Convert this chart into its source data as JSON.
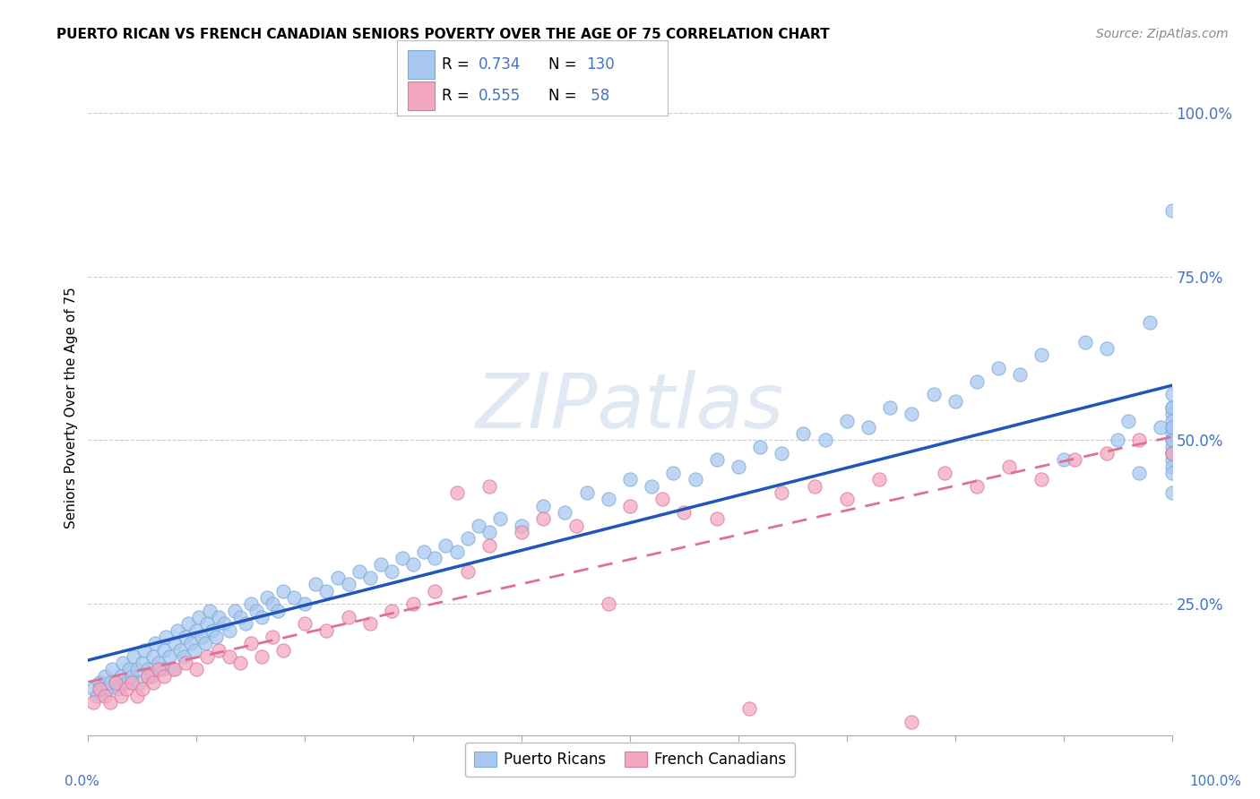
{
  "title": "PUERTO RICAN VS FRENCH CANADIAN SENIORS POVERTY OVER THE AGE OF 75 CORRELATION CHART",
  "source": "Source: ZipAtlas.com",
  "ylabel": "Seniors Poverty Over the Age of 75",
  "legend_pr": {
    "R": 0.734,
    "N": 130
  },
  "legend_fc": {
    "R": 0.555,
    "N": 58
  },
  "pr_color": "#a8c8f0",
  "pr_edge_color": "#7aaad8",
  "fc_color": "#f4a8c0",
  "fc_edge_color": "#d878a0",
  "pr_line_color": "#2255bb",
  "fc_line_color": "#e07090",
  "background_color": "#ffffff",
  "grid_color": "#cccccc",
  "ytick_color": "#4472c4",
  "watermark_color": "#e0e8f4",
  "xlim": [
    0.0,
    1.0
  ],
  "ylim": [
    0.05,
    1.05
  ],
  "pr_x": [
    0.005,
    0.008,
    0.01,
    0.012,
    0.015,
    0.018,
    0.02,
    0.022,
    0.025,
    0.028,
    0.03,
    0.032,
    0.035,
    0.038,
    0.04,
    0.042,
    0.045,
    0.048,
    0.05,
    0.052,
    0.055,
    0.058,
    0.06,
    0.062,
    0.065,
    0.068,
    0.07,
    0.072,
    0.075,
    0.078,
    0.08,
    0.082,
    0.085,
    0.088,
    0.09,
    0.092,
    0.095,
    0.098,
    0.1,
    0.102,
    0.105,
    0.108,
    0.11,
    0.112,
    0.115,
    0.118,
    0.12,
    0.125,
    0.13,
    0.135,
    0.14,
    0.145,
    0.15,
    0.155,
    0.16,
    0.165,
    0.17,
    0.175,
    0.18,
    0.19,
    0.2,
    0.21,
    0.22,
    0.23,
    0.24,
    0.25,
    0.26,
    0.27,
    0.28,
    0.29,
    0.3,
    0.31,
    0.32,
    0.33,
    0.34,
    0.35,
    0.36,
    0.37,
    0.38,
    0.4,
    0.42,
    0.44,
    0.46,
    0.48,
    0.5,
    0.52,
    0.54,
    0.56,
    0.58,
    0.6,
    0.62,
    0.64,
    0.66,
    0.68,
    0.7,
    0.72,
    0.74,
    0.76,
    0.78,
    0.8,
    0.82,
    0.84,
    0.86,
    0.88,
    0.9,
    0.92,
    0.94,
    0.95,
    0.96,
    0.97,
    0.98,
    0.99,
    1.0,
    1.0,
    1.0,
    1.0,
    1.0,
    1.0,
    1.0,
    1.0,
    1.0,
    1.0,
    1.0,
    1.0,
    1.0,
    1.0,
    1.0,
    1.0,
    1.0,
    1.0
  ],
  "pr_y": [
    0.12,
    0.11,
    0.13,
    0.12,
    0.14,
    0.12,
    0.13,
    0.15,
    0.13,
    0.12,
    0.14,
    0.16,
    0.13,
    0.15,
    0.14,
    0.17,
    0.15,
    0.13,
    0.16,
    0.18,
    0.15,
    0.14,
    0.17,
    0.19,
    0.16,
    0.15,
    0.18,
    0.2,
    0.17,
    0.15,
    0.19,
    0.21,
    0.18,
    0.17,
    0.2,
    0.22,
    0.19,
    0.18,
    0.21,
    0.23,
    0.2,
    0.19,
    0.22,
    0.24,
    0.21,
    0.2,
    0.23,
    0.22,
    0.21,
    0.24,
    0.23,
    0.22,
    0.25,
    0.24,
    0.23,
    0.26,
    0.25,
    0.24,
    0.27,
    0.26,
    0.25,
    0.28,
    0.27,
    0.29,
    0.28,
    0.3,
    0.29,
    0.31,
    0.3,
    0.32,
    0.31,
    0.33,
    0.32,
    0.34,
    0.33,
    0.35,
    0.37,
    0.36,
    0.38,
    0.37,
    0.4,
    0.39,
    0.42,
    0.41,
    0.44,
    0.43,
    0.45,
    0.44,
    0.47,
    0.46,
    0.49,
    0.48,
    0.51,
    0.5,
    0.53,
    0.52,
    0.55,
    0.54,
    0.57,
    0.56,
    0.59,
    0.61,
    0.6,
    0.63,
    0.47,
    0.65,
    0.64,
    0.5,
    0.53,
    0.45,
    0.68,
    0.52,
    0.48,
    0.54,
    0.55,
    0.5,
    0.52,
    0.47,
    0.46,
    0.49,
    0.51,
    0.53,
    0.55,
    0.57,
    0.45,
    0.48,
    0.42,
    0.85,
    0.5,
    0.52
  ],
  "fc_x": [
    0.005,
    0.01,
    0.015,
    0.02,
    0.025,
    0.03,
    0.035,
    0.04,
    0.045,
    0.05,
    0.055,
    0.06,
    0.065,
    0.07,
    0.08,
    0.09,
    0.1,
    0.11,
    0.12,
    0.13,
    0.14,
    0.15,
    0.16,
    0.17,
    0.18,
    0.2,
    0.22,
    0.24,
    0.26,
    0.28,
    0.3,
    0.32,
    0.35,
    0.37,
    0.4,
    0.42,
    0.45,
    0.48,
    0.5,
    0.53,
    0.55,
    0.58,
    0.61,
    0.64,
    0.67,
    0.7,
    0.73,
    0.76,
    0.79,
    0.82,
    0.85,
    0.88,
    0.91,
    0.94,
    0.97,
    1.0,
    0.34,
    0.37
  ],
  "fc_y": [
    0.1,
    0.12,
    0.11,
    0.1,
    0.13,
    0.11,
    0.12,
    0.13,
    0.11,
    0.12,
    0.14,
    0.13,
    0.15,
    0.14,
    0.15,
    0.16,
    0.15,
    0.17,
    0.18,
    0.17,
    0.16,
    0.19,
    0.17,
    0.2,
    0.18,
    0.22,
    0.21,
    0.23,
    0.22,
    0.24,
    0.25,
    0.27,
    0.3,
    0.34,
    0.36,
    0.38,
    0.37,
    0.25,
    0.4,
    0.41,
    0.39,
    0.38,
    0.09,
    0.42,
    0.43,
    0.41,
    0.44,
    0.07,
    0.45,
    0.43,
    0.46,
    0.44,
    0.47,
    0.48,
    0.5,
    0.48,
    0.42,
    0.43
  ]
}
